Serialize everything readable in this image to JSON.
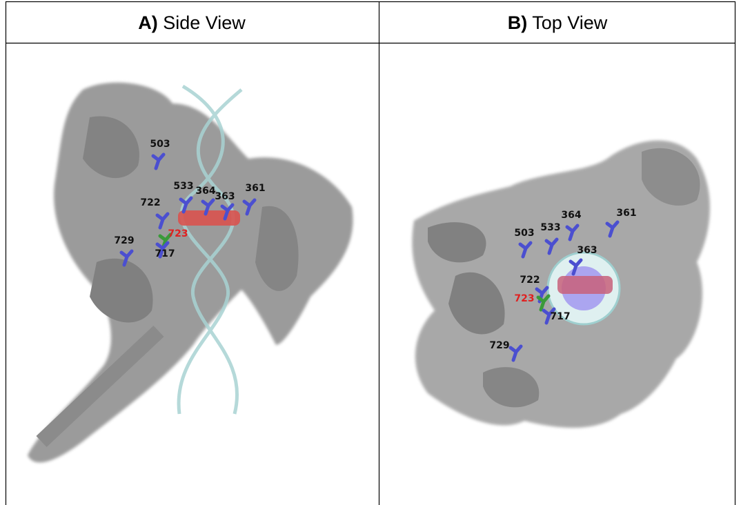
{
  "panels": [
    {
      "letter": "A)",
      "title": "Side View",
      "residues": [
        "503",
        "533",
        "364",
        "363",
        "361",
        "722",
        "723",
        "729",
        "717"
      ]
    },
    {
      "letter": "B)",
      "title": "Top View",
      "residues": [
        "364",
        "361",
        "503",
        "533",
        "363",
        "722",
        "723",
        "717",
        "729"
      ]
    }
  ]
}
